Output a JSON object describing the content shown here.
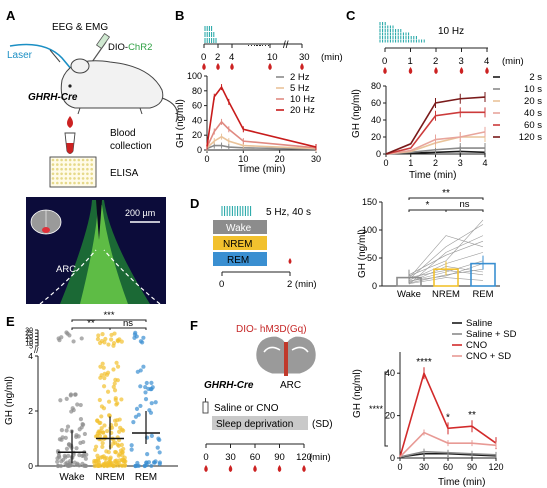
{
  "colors": {
    "hz2": "#8a8a8a",
    "hz5": "#e9c39a",
    "hz10": "#e08a82",
    "hz20": "#c81c1c",
    "s2": "#1a1a1a",
    "s10": "#8a8a8a",
    "s20": "#e9c39a",
    "s40": "#e8a59c",
    "s60": "#cc3b3b",
    "s120": "#7a1a1a",
    "wake": "#8c8c8c",
    "nrem": "#f2c12e",
    "rem": "#3a8fd1",
    "saline": "#1a1a1a",
    "salinesd": "#8a8a8a",
    "cno": "#d22a2a",
    "cnosd": "#e89a95",
    "teal": "#1aa3a3",
    "drop": "#cc2222",
    "green": "#2ea043"
  },
  "panel_a": {
    "letter": "A",
    "eeg": "EEG & EMG",
    "laser": "Laser",
    "virus_prefix": "DIO-",
    "virus_name": "ChR2",
    "mouse_line": "GHRH-Cre",
    "blood1": "Blood",
    "blood2": "collection",
    "elisa": "ELISA",
    "scale": "200 µm",
    "arc": "ARC"
  },
  "panel_b": {
    "letter": "B",
    "timeline_ticks": [
      "0",
      "2",
      "4",
      "10",
      "30"
    ],
    "timeline_unit": "(min)",
    "chart_data": {
      "type": "line",
      "xlabel": "Time (min)",
      "ylabel": "GH (ng/ml)",
      "xlim": [
        0,
        30
      ],
      "ylim": [
        0,
        100
      ],
      "xticks": [
        "0",
        "10",
        "20",
        "30"
      ],
      "yticks": [
        "0",
        "20",
        "40",
        "60",
        "80",
        "100"
      ],
      "x": [
        0,
        2,
        4,
        6,
        10,
        30
      ],
      "series": [
        {
          "name": "2 Hz",
          "values": [
            2,
            6,
            6,
            4,
            3,
            1
          ]
        },
        {
          "name": "5 Hz",
          "values": [
            3,
            12,
            18,
            12,
            6,
            2
          ]
        },
        {
          "name": "10 Hz",
          "values": [
            4,
            25,
            38,
            28,
            12,
            3
          ]
        },
        {
          "name": "20 Hz",
          "values": [
            5,
            72,
            85,
            65,
            28,
            4
          ]
        }
      ],
      "legend_position": "right"
    }
  },
  "panel_c": {
    "letter": "C",
    "hz_label": "10 Hz",
    "timeline_ticks": [
      "0",
      "1",
      "2",
      "3",
      "4"
    ],
    "timeline_unit": "(min)",
    "chart_data": {
      "type": "line",
      "xlabel": "Time (min)",
      "ylabel": "GH (ng/ml)",
      "xlim": [
        0,
        4
      ],
      "ylim": [
        0,
        80
      ],
      "xticks": [
        "0",
        "1",
        "2",
        "3",
        "4"
      ],
      "yticks": [
        "0",
        "20",
        "40",
        "60",
        "80"
      ],
      "x": [
        0,
        1,
        2,
        3,
        4
      ],
      "series": [
        {
          "name": "2 s",
          "values": [
            0,
            1,
            2,
            3,
            2
          ]
        },
        {
          "name": "10 s",
          "values": [
            0,
            2,
            5,
            7,
            7
          ]
        },
        {
          "name": "20 s",
          "values": [
            0,
            3,
            13,
            20,
            20
          ]
        },
        {
          "name": "40 s",
          "values": [
            0,
            4,
            17,
            20,
            26
          ]
        },
        {
          "name": "60 s",
          "values": [
            0,
            7,
            45,
            49,
            49
          ]
        },
        {
          "name": "120 s",
          "values": [
            0,
            12,
            60,
            65,
            67
          ]
        }
      ],
      "legend_position": "right"
    }
  },
  "panel_d": {
    "letter": "D",
    "stim_label": "5 Hz, 40 s",
    "states": [
      "Wake",
      "NREM",
      "REM"
    ],
    "timeline_ticks": [
      "0",
      "2 (min)"
    ],
    "chart_data": {
      "type": "bar",
      "categories": [
        "Wake",
        "NREM",
        "REM"
      ],
      "values": [
        15,
        30,
        40
      ],
      "ylabel": "GH (ng/ml)",
      "ylim": [
        0,
        150
      ],
      "yticks": [
        "0",
        "50",
        "100",
        "150"
      ],
      "sig_labels": [
        "*",
        "ns",
        "**"
      ]
    }
  },
  "panel_e": {
    "letter": "E",
    "chart_data": {
      "type": "scatter",
      "categories": [
        "Wake",
        "NREM",
        "REM"
      ],
      "medians": [
        0.5,
        1.0,
        1.2
      ],
      "ylabel": "GH (ng/ml)",
      "yticks_lower": [
        "0",
        "2",
        "4"
      ],
      "yticks_upper": [
        "5",
        "10",
        "15",
        "20",
        "25",
        "30"
      ],
      "sig_labels": [
        "**",
        "ns",
        "***"
      ]
    }
  },
  "panel_f": {
    "letter": "F",
    "virus_prefix": "DIO- ",
    "virus_name": "hM3D(Gq)",
    "mouse_line": "GHRH-Cre",
    "arc": "ARC",
    "treat": "Saline or CNO",
    "sd": "Sleep deprivation",
    "sd_tag": "(SD)",
    "timeline_ticks": [
      "0",
      "30",
      "60",
      "90",
      "120"
    ],
    "timeline_unit": "(min)",
    "chart_data": {
      "type": "line",
      "xlabel": "Time (min)",
      "ylabel": "GH (ng/ml)",
      "xlim": [
        0,
        120
      ],
      "ylim": [
        0,
        50
      ],
      "xticks": [
        "0",
        "30",
        "60",
        "90",
        "120"
      ],
      "yticks": [
        "0",
        "20",
        "40"
      ],
      "x": [
        0,
        30,
        60,
        90,
        120
      ],
      "series": [
        {
          "name": "Saline",
          "values": [
            0.5,
            2,
            2,
            1.5,
            1
          ]
        },
        {
          "name": "Saline + SD",
          "values": [
            0.5,
            3,
            2.5,
            2,
            1.5
          ]
        },
        {
          "name": "CNO",
          "values": [
            0.5,
            40,
            14,
            15,
            7
          ]
        },
        {
          "name": "CNO + SD",
          "values": [
            0.5,
            12,
            7,
            7,
            6
          ]
        }
      ],
      "sig_labels": [
        "****",
        "*",
        "**",
        "****"
      ],
      "legend_position": "top-right"
    }
  }
}
